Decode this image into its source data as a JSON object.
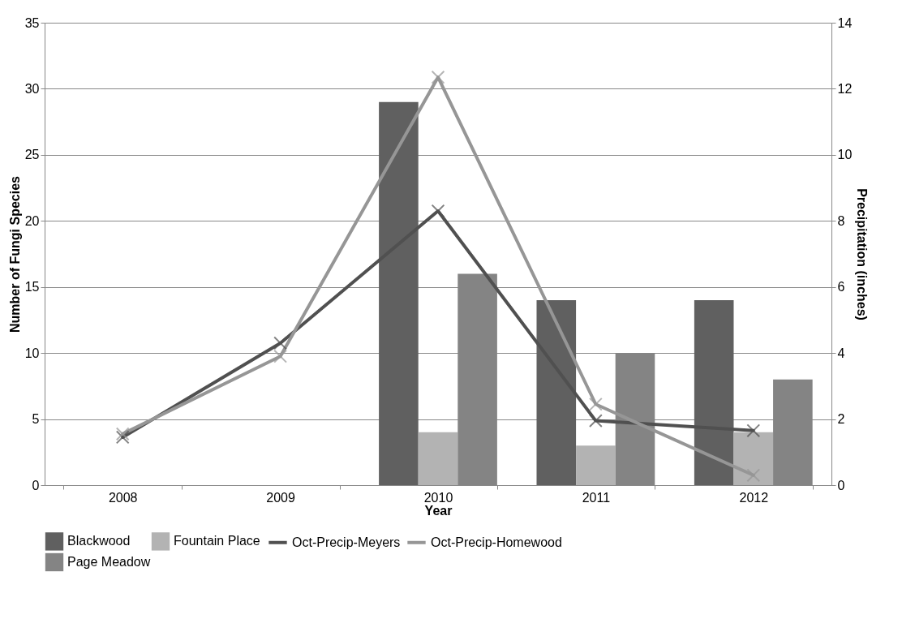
{
  "chart_data": {
    "type": "bar",
    "xlabel": "Year",
    "ylabel": "Number of Fungi Species",
    "y2label": "Precipitation (inches)",
    "categories": [
      "2008",
      "2009",
      "2010",
      "2011",
      "2012"
    ],
    "series": [
      {
        "name": "Blackwood",
        "color": "#606060",
        "values": [
          null,
          null,
          29,
          14,
          14
        ]
      },
      {
        "name": "Fountain Place",
        "color": "#b3b3b3",
        "values": [
          null,
          null,
          4,
          3,
          4
        ]
      },
      {
        "name": "Page Meadow",
        "color": "#848484",
        "values": [
          null,
          null,
          16,
          10,
          8
        ]
      },
      {
        "name": "Oct-Precip-Meyers",
        "type": "line",
        "axis": "y2",
        "marker": "cross",
        "color": "#505050",
        "values": [
          1.45,
          4.3,
          8.3,
          1.95,
          1.65
        ]
      },
      {
        "name": "Oct-Precip-Homewood",
        "type": "line",
        "axis": "y2",
        "marker": "cross",
        "color": "#969696",
        "values": [
          1.55,
          3.9,
          12.35,
          2.45,
          0.3
        ]
      }
    ],
    "ylim": [
      0,
      35
    ],
    "yticks": [
      0,
      5,
      10,
      15,
      20,
      25,
      30,
      35
    ],
    "y2lim": [
      0,
      14
    ],
    "y2ticks": [
      0,
      2,
      4,
      6,
      8,
      10,
      12,
      14
    ],
    "grid": "y",
    "legend": "bottom"
  }
}
